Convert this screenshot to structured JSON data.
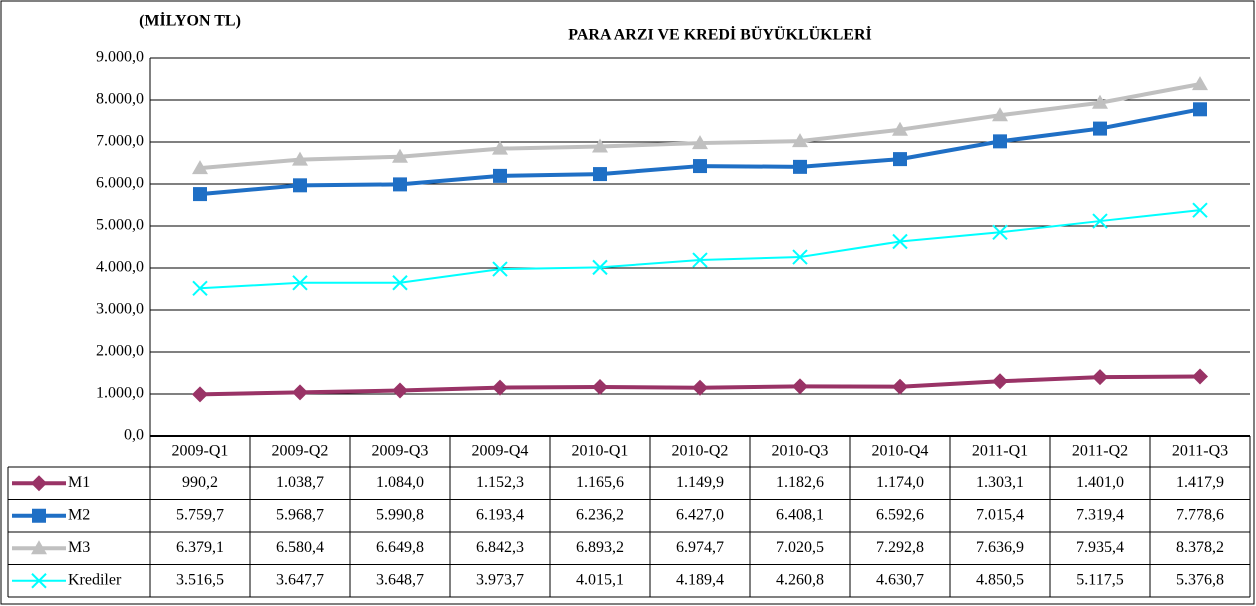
{
  "chart_data": {
    "type": "line",
    "unit_label": "(MİLYON TL)",
    "title": "PARA ARZI VE KREDİ BÜYÜKLÜKLERİ",
    "categories": [
      "2009-Q1",
      "2009-Q2",
      "2009-Q3",
      "2009-Q4",
      "2010-Q1",
      "2010-Q2",
      "2010-Q3",
      "2010-Q4",
      "2011-Q1",
      "2011-Q2",
      "2011-Q3"
    ],
    "ylim": [
      0,
      9000
    ],
    "yticks": [
      {
        "value": 0,
        "label": "0,0"
      },
      {
        "value": 1000,
        "label": "1.000,0"
      },
      {
        "value": 2000,
        "label": "2.000,0"
      },
      {
        "value": 3000,
        "label": "3.000,0"
      },
      {
        "value": 4000,
        "label": "4.000,0"
      },
      {
        "value": 5000,
        "label": "5.000,0"
      },
      {
        "value": 6000,
        "label": "6.000,0"
      },
      {
        "value": 7000,
        "label": "7.000,0"
      },
      {
        "value": 8000,
        "label": "8.000,0"
      },
      {
        "value": 9000,
        "label": "9.000,0"
      }
    ],
    "grid": true,
    "series": [
      {
        "name": "M1",
        "color": "#993366",
        "marker": "diamond",
        "values": [
          990.2,
          1038.7,
          1084.0,
          1152.3,
          1165.6,
          1149.9,
          1182.6,
          1174.0,
          1303.1,
          1401.0,
          1417.9
        ],
        "value_labels": [
          "990,2",
          "1.038,7",
          "1.084,0",
          "1.152,3",
          "1.165,6",
          "1.149,9",
          "1.182,6",
          "1.174,0",
          "1.303,1",
          "1.401,0",
          "1.417,9"
        ]
      },
      {
        "name": "M2",
        "color": "#1f6fc5",
        "marker": "square",
        "values": [
          5759.7,
          5968.7,
          5990.8,
          6193.4,
          6236.2,
          6427.0,
          6408.1,
          6592.6,
          7015.4,
          7319.4,
          7778.6
        ],
        "value_labels": [
          "5.759,7",
          "5.968,7",
          "5.990,8",
          "6.193,4",
          "6.236,2",
          "6.427,0",
          "6.408,1",
          "6.592,6",
          "7.015,4",
          "7.319,4",
          "7.778,6"
        ]
      },
      {
        "name": "M3",
        "color": "#c0c0c0",
        "marker": "triangle",
        "values": [
          6379.1,
          6580.4,
          6649.8,
          6842.3,
          6893.2,
          6974.7,
          7020.5,
          7292.8,
          7636.9,
          7935.4,
          8378.2
        ],
        "value_labels": [
          "6.379,1",
          "6.580,4",
          "6.649,8",
          "6.842,3",
          "6.893,2",
          "6.974,7",
          "7.020,5",
          "7.292,8",
          "7.636,9",
          "7.935,4",
          "8.378,2"
        ]
      },
      {
        "name": "Krediler",
        "color": "#00ffff",
        "marker": "x",
        "values": [
          3516.5,
          3647.7,
          3648.7,
          3973.7,
          4015.1,
          4189.4,
          4260.8,
          4630.7,
          4850.5,
          5117.5,
          5376.8
        ],
        "value_labels": [
          "3.516,5",
          "3.647,7",
          "3.648,7",
          "3.973,7",
          "4.015,1",
          "4.189,4",
          "4.260,8",
          "4.630,7",
          "4.850,5",
          "5.117,5",
          "5.376,8"
        ]
      }
    ]
  }
}
